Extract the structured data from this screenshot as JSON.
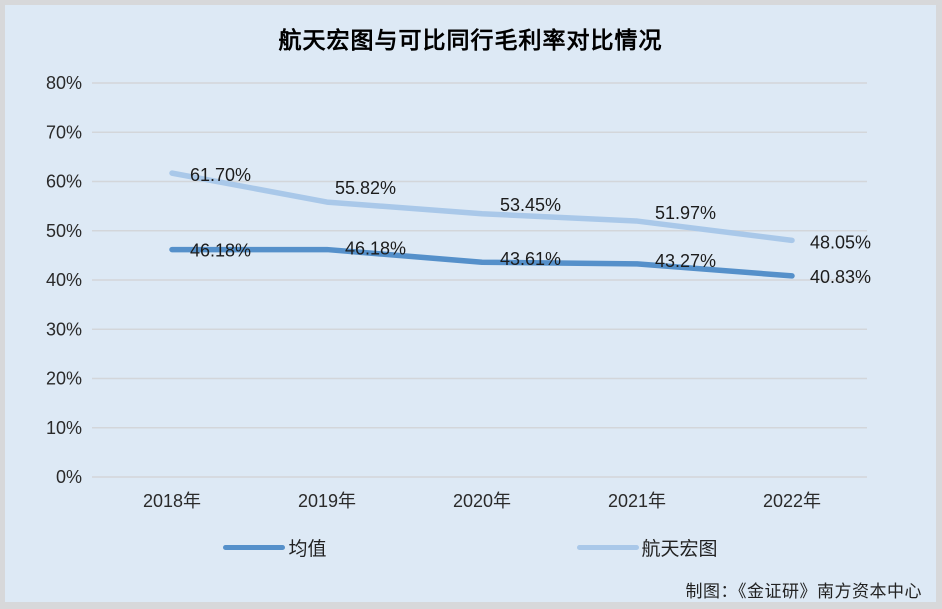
{
  "chart": {
    "title": "航天宏图与可比同行毛利率对比情况"
  },
  "chart_data": {
    "type": "line",
    "categories": [
      "2018年",
      "2019年",
      "2020年",
      "2021年",
      "2022年"
    ],
    "series": [
      {
        "name": "均值",
        "values": [
          46.18,
          46.18,
          43.61,
          43.27,
          40.83
        ],
        "point_labels": [
          "46.18%",
          "46.18%",
          "43.61%",
          "43.27%",
          "40.83%"
        ],
        "color": "#5590ca"
      },
      {
        "name": "航天宏图",
        "values": [
          61.7,
          55.82,
          53.45,
          51.97,
          48.05
        ],
        "point_labels": [
          "61.70%",
          "55.82%",
          "53.45%",
          "51.97%",
          "48.05%"
        ],
        "color": "#a9c8e9"
      }
    ],
    "ylim": [
      0,
      80
    ],
    "ytick_step": 10,
    "ytick_labels": [
      "0%",
      "10%",
      "20%",
      "30%",
      "40%",
      "50%",
      "60%",
      "70%",
      "80%"
    ],
    "grid": "horizontal",
    "legend_position": "bottom"
  },
  "footer": {
    "credit": "制图：《金证研》南方资本中心"
  },
  "colors": {
    "panel_bg": "#dde9f5",
    "page_border": "#d7d8da",
    "gridline": "#d3d6da",
    "mean_line": "#5590ca",
    "piesat_line": "#a9c8e9",
    "text": "#1c1c1c"
  }
}
